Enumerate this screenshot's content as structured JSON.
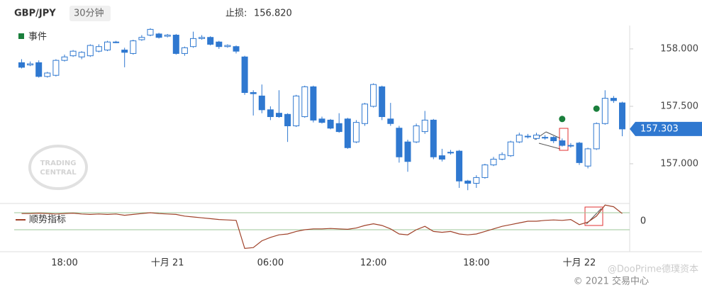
{
  "header": {
    "symbol": "GBP/JPY",
    "interval": "30分钟",
    "stop_label": "止损:",
    "stop_value": "156.820"
  },
  "footer": {
    "watermark": "@DooPrime德璞资本",
    "copyright": "© 2021 交易中心",
    "logo_top": "TRADING",
    "logo_bottom": "CENTRAL"
  },
  "chart_data": [
    {
      "type": "candlestick",
      "color": "#2f78d0",
      "categories": [
        null,
        null,
        null,
        null,
        null,
        "18:00",
        null,
        null,
        null,
        null,
        null,
        null,
        null,
        null,
        null,
        null,
        null,
        "十月 21",
        null,
        null,
        null,
        null,
        null,
        null,
        null,
        null,
        null,
        null,
        null,
        "06:00",
        null,
        null,
        null,
        null,
        null,
        null,
        null,
        null,
        null,
        null,
        null,
        "12:00",
        null,
        null,
        null,
        null,
        null,
        null,
        null,
        null,
        null,
        null,
        null,
        "18:00",
        null,
        null,
        null,
        null,
        null,
        null,
        null,
        null,
        null,
        null,
        null,
        "十月 22",
        null,
        null,
        null,
        null,
        null
      ],
      "open": [
        157.88,
        157.86,
        157.88,
        157.76,
        157.77,
        157.9,
        157.94,
        157.93,
        157.94,
        157.98,
        157.99,
        158.06,
        157.99,
        157.96,
        158.08,
        158.12,
        158.13,
        158.11,
        158.12,
        157.96,
        158.02,
        158.09,
        158.1,
        158.06,
        158.02,
        158.02,
        157.93,
        157.62,
        157.59,
        157.47,
        157.44,
        157.43,
        157.33,
        157.41,
        157.67,
        157.39,
        157.38,
        157.35,
        157.39,
        157.19,
        157.35,
        157.5,
        157.67,
        157.39,
        157.31,
        157.19,
        157.19,
        157.28,
        157.38,
        157.07,
        157.1,
        157.11,
        156.85,
        156.83,
        156.88,
        156.99,
        157.04,
        157.07,
        157.19,
        157.24,
        157.22,
        157.23,
        157.23,
        157.2,
        157.16,
        157.18,
        156.98,
        157.13,
        157.35,
        157.57,
        157.53
      ],
      "high": [
        157.91,
        157.89,
        157.9,
        157.8,
        157.91,
        157.95,
        157.99,
        157.98,
        158.04,
        158.04,
        158.07,
        158.07,
        158.01,
        158.08,
        158.12,
        158.18,
        158.14,
        158.13,
        158.13,
        158.02,
        158.15,
        158.12,
        158.11,
        158.07,
        158.04,
        158.03,
        157.94,
        157.64,
        157.69,
        157.5,
        157.64,
        157.44,
        157.6,
        157.68,
        157.68,
        157.41,
        157.39,
        157.44,
        157.4,
        157.38,
        157.53,
        157.7,
        157.68,
        157.53,
        157.33,
        157.21,
        157.35,
        157.46,
        157.39,
        157.13,
        157.12,
        157.12,
        156.86,
        156.9,
        157.0,
        157.06,
        157.1,
        157.2,
        157.27,
        157.26,
        157.27,
        157.25,
        157.24,
        157.22,
        157.18,
        157.19,
        157.14,
        157.36,
        157.64,
        157.59,
        157.54
      ],
      "low": [
        157.83,
        157.85,
        157.75,
        157.75,
        157.76,
        157.89,
        157.93,
        157.91,
        157.93,
        157.97,
        157.98,
        158.05,
        157.84,
        157.95,
        158.07,
        158.11,
        158.09,
        158.1,
        157.95,
        157.94,
        158.01,
        158.08,
        158.03,
        158.0,
        158.01,
        157.96,
        157.6,
        157.42,
        157.44,
        157.38,
        157.4,
        157.19,
        157.32,
        157.4,
        157.36,
        157.35,
        157.3,
        157.27,
        157.13,
        157.18,
        157.33,
        157.49,
        157.38,
        157.33,
        157.01,
        156.93,
        157.18,
        157.26,
        157.04,
        157.02,
        157.08,
        156.79,
        156.77,
        156.79,
        156.87,
        156.98,
        157.03,
        157.06,
        157.18,
        157.22,
        157.21,
        157.21,
        157.18,
        157.15,
        157.14,
        156.99,
        156.96,
        157.12,
        157.34,
        157.53,
        157.24
      ],
      "close": [
        157.84,
        157.87,
        157.76,
        157.79,
        157.9,
        157.93,
        157.98,
        157.97,
        158.03,
        158.02,
        158.06,
        158.06,
        157.97,
        158.07,
        158.1,
        158.17,
        158.1,
        158.12,
        157.96,
        158.01,
        158.09,
        158.1,
        158.04,
        158.02,
        158.03,
        157.98,
        157.62,
        157.61,
        157.47,
        157.41,
        157.41,
        157.33,
        157.59,
        157.67,
        157.38,
        157.36,
        157.31,
        157.28,
        157.14,
        157.36,
        157.52,
        157.69,
        157.41,
        157.35,
        157.06,
        157.02,
        157.33,
        157.38,
        157.06,
        157.04,
        157.1,
        156.85,
        156.83,
        156.88,
        156.99,
        157.04,
        157.08,
        157.19,
        157.25,
        157.24,
        157.25,
        157.23,
        157.2,
        157.16,
        157.16,
        157.01,
        157.13,
        157.35,
        157.57,
        157.55,
        157.303
      ],
      "events": {
        "name": "事件",
        "color": "#1a7f3c",
        "values": [
          null,
          null,
          null,
          null,
          null,
          null,
          null,
          null,
          null,
          null,
          null,
          null,
          null,
          null,
          null,
          null,
          null,
          null,
          null,
          null,
          null,
          null,
          null,
          null,
          null,
          null,
          null,
          null,
          null,
          null,
          null,
          null,
          null,
          null,
          null,
          null,
          null,
          null,
          null,
          null,
          null,
          null,
          null,
          null,
          null,
          null,
          null,
          null,
          null,
          null,
          null,
          null,
          null,
          null,
          null,
          null,
          null,
          null,
          null,
          null,
          null,
          null,
          null,
          157.39,
          null,
          null,
          null,
          157.48,
          null,
          null,
          null
        ]
      },
      "ylim": [
        156.685,
        158.191
      ],
      "yticks": [
        {
          "value": 157,
          "label": "157.000"
        },
        {
          "value": 157.5,
          "label": "157.500"
        },
        {
          "value": 158,
          "label": "158.000"
        }
      ]
    },
    {
      "type": "line",
      "series": [
        {
          "name": "顺势指标",
          "color": "#a0422a",
          "values": [
            0.9,
            0.9,
            0.95,
            0.9,
            0.85,
            0.9,
            0.95,
            0.85,
            0.8,
            0.85,
            0.8,
            0.85,
            0.7,
            0.8,
            0.9,
            1.0,
            0.9,
            0.85,
            0.8,
            0.6,
            0.5,
            0.4,
            0.3,
            0.2,
            0.15,
            0.1,
            -3.2,
            -3.1,
            -2.3,
            -1.9,
            -1.6,
            -1.5,
            -1.2,
            -1.0,
            -0.9,
            -0.9,
            -0.85,
            -0.9,
            -0.95,
            -0.8,
            -0.5,
            -0.3,
            -0.5,
            -0.9,
            -1.5,
            -1.6,
            -1.0,
            -0.6,
            -1.2,
            -1.3,
            -1.2,
            -1.5,
            -1.6,
            -1.5,
            -1.2,
            -0.9,
            -0.6,
            -0.4,
            -0.2,
            0.0,
            0.0,
            0.1,
            0.15,
            0.1,
            0.2,
            -0.4,
            -0.1,
            0.6,
            1.9,
            1.7,
            0.9
          ]
        }
      ],
      "reference_lines": [
        1,
        -1
      ],
      "reference_color": "#9cc79a",
      "ylim": [
        -3.5,
        2
      ],
      "yticks": [
        0
      ]
    }
  ]
}
